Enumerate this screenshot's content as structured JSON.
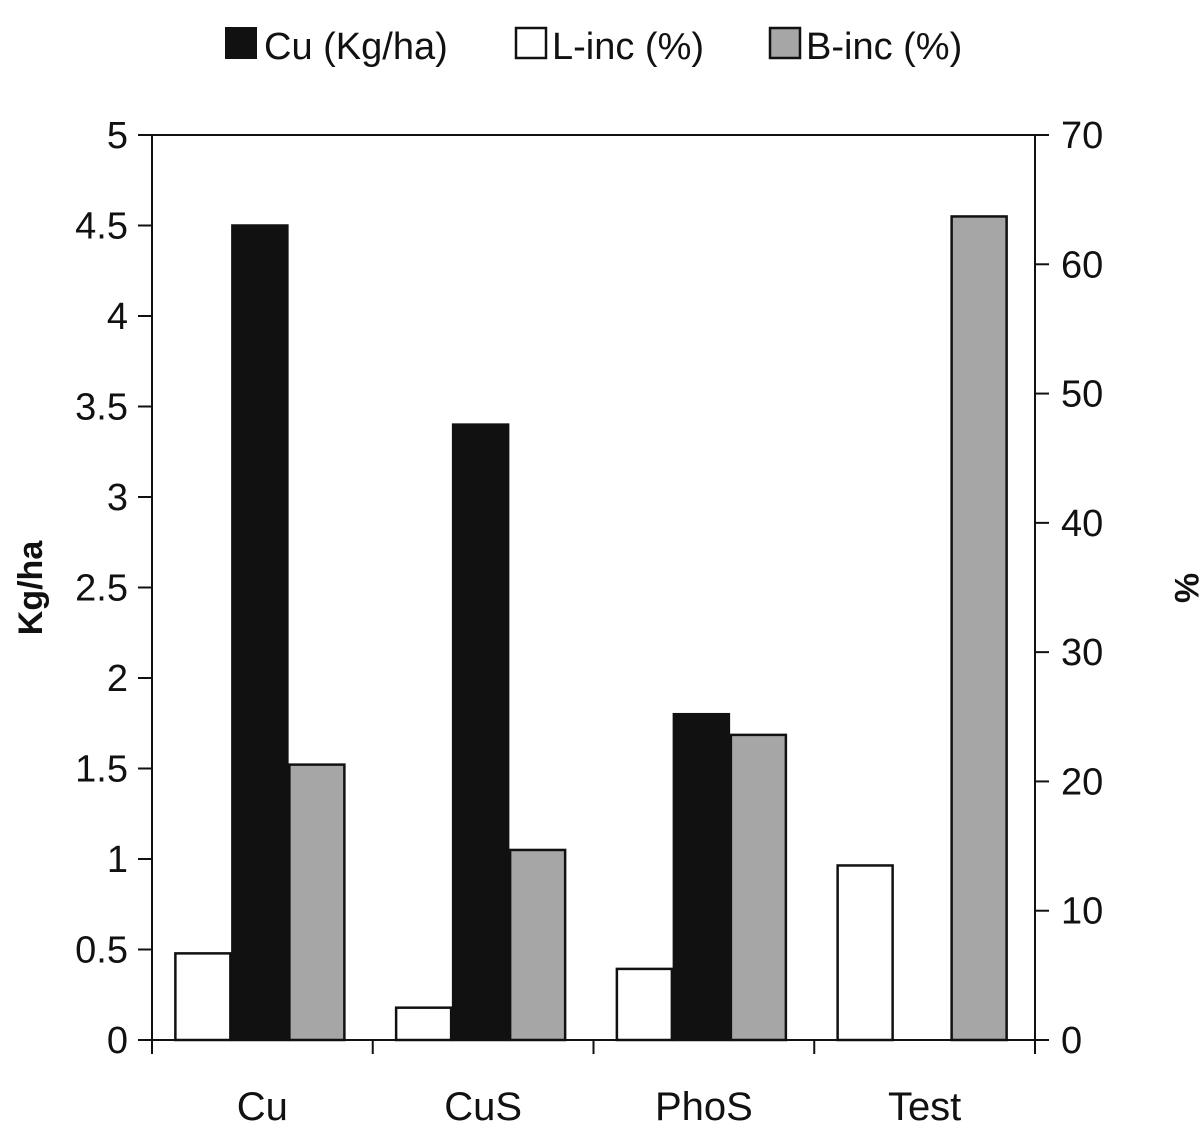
{
  "chart_data": {
    "type": "bar",
    "categories": [
      "Cu",
      "CuS",
      "PhoS",
      "Test"
    ],
    "series": [
      {
        "name": "Cu (Kg/ha)",
        "axis": "left",
        "color": "#111111",
        "values": [
          4.5,
          3.4,
          1.8,
          0
        ]
      },
      {
        "name": "L-inc (%)",
        "axis": "right",
        "color": "#ffffff",
        "values": [
          6.7,
          2.5,
          5.5,
          13.5
        ]
      },
      {
        "name": "B-inc (%)",
        "axis": "right",
        "color": "#a6a6a6",
        "values": [
          21.3,
          14.7,
          23.6,
          63.7
        ]
      }
    ],
    "left_axis": {
      "label": "Kg/ha",
      "min": 0,
      "max": 5,
      "ticks": [
        "0",
        "0.5",
        "1",
        "1.5",
        "2",
        "2.5",
        "3",
        "3.5",
        "4",
        "4.5",
        "5"
      ]
    },
    "right_axis": {
      "label": "%",
      "min": 0,
      "max": 70,
      "ticks": [
        "0",
        "10",
        "20",
        "30",
        "40",
        "50",
        "60",
        "70"
      ]
    },
    "legend_position": "top-center"
  }
}
